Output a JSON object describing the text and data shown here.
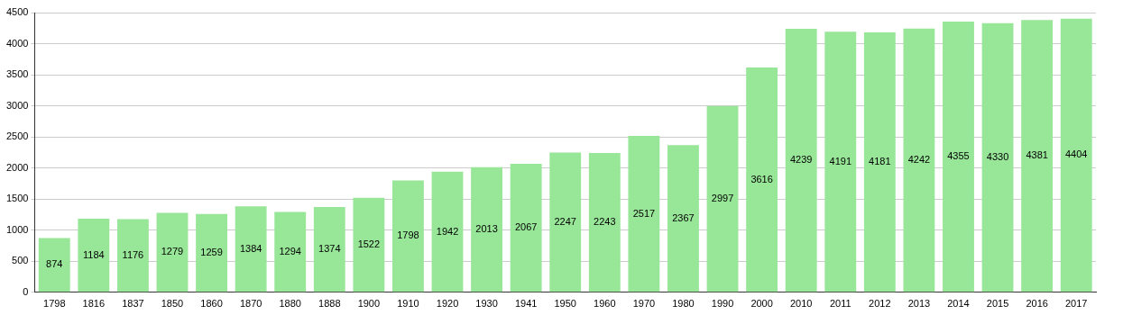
{
  "chart_data": {
    "type": "bar",
    "categories": [
      "1798",
      "1816",
      "1837",
      "1850",
      "1860",
      "1870",
      "1880",
      "1888",
      "1900",
      "1910",
      "1920",
      "1930",
      "1941",
      "1950",
      "1960",
      "1970",
      "1980",
      "1990",
      "2000",
      "2010",
      "2011",
      "2012",
      "2013",
      "2014",
      "2015",
      "2016",
      "2017"
    ],
    "values": [
      874,
      1184,
      1176,
      1279,
      1259,
      1384,
      1294,
      1374,
      1522,
      1798,
      1942,
      2013,
      2067,
      2247,
      2243,
      2517,
      2367,
      2997,
      3616,
      4239,
      4191,
      4181,
      4242,
      4355,
      4330,
      4381,
      4404
    ],
    "color": "#98e698",
    "ylim": [
      0,
      4500
    ],
    "yticks": [
      0,
      500,
      1000,
      1500,
      2000,
      2500,
      3000,
      3500,
      4000,
      4500
    ],
    "grid": "y",
    "data_labels": true,
    "legend": false
  }
}
